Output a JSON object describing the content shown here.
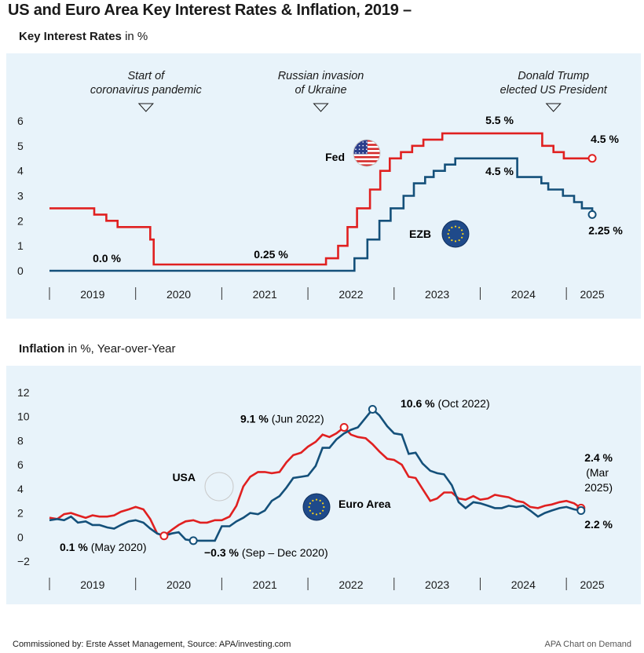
{
  "title": "US and Euro Area Key Interest Rates & Inflation, 2019 –",
  "footer": {
    "left": "Commissioned by: Erste Asset Management, Source: APA/investing.com",
    "right": "APA Chart on Demand"
  },
  "colors": {
    "us": "#e02020",
    "euro": "#14507a",
    "panel": "#e8f3fa"
  },
  "chart_data": [
    {
      "type": "line",
      "subtitle_bold": "Key Interest Rates",
      "subtitle_rest": " in %",
      "ylim": [
        0,
        6
      ],
      "yticks": [
        "0",
        "1",
        "2",
        "3",
        "4",
        "5",
        "6"
      ],
      "xlim": [
        2019,
        2025.5
      ],
      "xticks": [
        {
          "label": "2019",
          "x": 2019.5
        },
        {
          "label": "2020",
          "x": 2020.5
        },
        {
          "label": "2021",
          "x": 2021.5
        },
        {
          "label": "2022",
          "x": 2022.5
        },
        {
          "label": "2023",
          "x": 2023.5
        },
        {
          "label": "2024",
          "x": 2024.5
        },
        {
          "label": "2025",
          "x": 2025.3
        }
      ],
      "grid": false,
      "series": [
        {
          "name": "Fed",
          "key": "us",
          "step": true,
          "points": [
            [
              2019.0,
              2.5
            ],
            [
              2019.52,
              2.25
            ],
            [
              2019.66,
              2.0
            ],
            [
              2019.79,
              1.75
            ],
            [
              2020.17,
              1.25
            ],
            [
              2020.21,
              0.25
            ],
            [
              2022.21,
              0.5
            ],
            [
              2022.35,
              1.0
            ],
            [
              2022.46,
              1.75
            ],
            [
              2022.57,
              2.5
            ],
            [
              2022.72,
              3.25
            ],
            [
              2022.84,
              4.0
            ],
            [
              2022.95,
              4.5
            ],
            [
              2023.08,
              4.75
            ],
            [
              2023.21,
              5.0
            ],
            [
              2023.34,
              5.25
            ],
            [
              2023.56,
              5.5
            ],
            [
              2024.72,
              5.0
            ],
            [
              2024.85,
              4.75
            ],
            [
              2024.97,
              4.5
            ],
            [
              2025.3,
              4.5
            ]
          ],
          "label": "Fed",
          "annotations": [
            {
              "text": "5.5 %",
              "x": 2024.1,
              "y": 5.5,
              "bold": true
            },
            {
              "text": "4.5 %",
              "x": 2025.3,
              "y": 4.5,
              "bold": true
            },
            {
              "text": "0.25 %",
              "x": 2021.5,
              "y": 0.25,
              "bold": true
            }
          ]
        },
        {
          "name": "EZB",
          "key": "euro",
          "step": true,
          "points": [
            [
              2019.0,
              0.0
            ],
            [
              2022.54,
              0.0
            ],
            [
              2022.54,
              0.5
            ],
            [
              2022.69,
              1.25
            ],
            [
              2022.83,
              2.0
            ],
            [
              2022.96,
              2.5
            ],
            [
              2023.11,
              3.0
            ],
            [
              2023.23,
              3.5
            ],
            [
              2023.36,
              3.75
            ],
            [
              2023.46,
              4.0
            ],
            [
              2023.59,
              4.25
            ],
            [
              2023.71,
              4.5
            ],
            [
              2024.43,
              4.5
            ],
            [
              2024.43,
              3.75
            ],
            [
              2024.71,
              3.5
            ],
            [
              2024.79,
              3.25
            ],
            [
              2024.96,
              3.0
            ],
            [
              2025.09,
              2.75
            ],
            [
              2025.18,
              2.5
            ],
            [
              2025.3,
              2.25
            ]
          ],
          "label": "EZB",
          "annotations": [
            {
              "text": "4.5 %",
              "x": 2024.05,
              "y": 4.5,
              "bold": true
            },
            {
              "text": "2.25 %",
              "x": 2025.3,
              "y": 2.25,
              "bold": true
            },
            {
              "text": "0.0 %",
              "x": 2019.7,
              "y": 0.0,
              "bold": true
            }
          ]
        }
      ],
      "events": [
        {
          "line1": "Start of",
          "line2": "coronavirus pandemic",
          "x": 2020.12
        },
        {
          "line1": "Russian invasion",
          "line2": "of Ukraine",
          "x": 2022.15
        },
        {
          "line1": "Donald Trump",
          "line2": "elected US President",
          "x": 2024.85
        }
      ]
    },
    {
      "type": "line",
      "subtitle_bold": "Inflation",
      "subtitle_rest": " in %, Year-over-Year",
      "ylim": [
        -2,
        12
      ],
      "yticks": [
        "−2",
        "0",
        "2",
        "4",
        "6",
        "8",
        "10",
        "12"
      ],
      "xlim": [
        2019,
        2025.5
      ],
      "xticks": [
        {
          "label": "2019",
          "x": 2019.5
        },
        {
          "label": "2020",
          "x": 2020.5
        },
        {
          "label": "2021",
          "x": 2021.5
        },
        {
          "label": "2022",
          "x": 2022.5
        },
        {
          "label": "2023",
          "x": 2023.5
        },
        {
          "label": "2024",
          "x": 2024.5
        },
        {
          "label": "2025",
          "x": 2025.3
        }
      ],
      "grid": false,
      "series": [
        {
          "name": "USA",
          "key": "us",
          "points": [
            [
              2019.0,
              1.6
            ],
            [
              2019.09,
              1.5
            ],
            [
              2019.17,
              1.9
            ],
            [
              2019.25,
              2.0
            ],
            [
              2019.33,
              1.8
            ],
            [
              2019.42,
              1.6
            ],
            [
              2019.5,
              1.8
            ],
            [
              2019.58,
              1.7
            ],
            [
              2019.67,
              1.7
            ],
            [
              2019.75,
              1.8
            ],
            [
              2019.83,
              2.1
            ],
            [
              2019.92,
              2.3
            ],
            [
              2020.0,
              2.5
            ],
            [
              2020.09,
              2.3
            ],
            [
              2020.17,
              1.5
            ],
            [
              2020.25,
              0.3
            ],
            [
              2020.33,
              0.1
            ],
            [
              2020.42,
              0.6
            ],
            [
              2020.5,
              1.0
            ],
            [
              2020.58,
              1.3
            ],
            [
              2020.67,
              1.4
            ],
            [
              2020.75,
              1.2
            ],
            [
              2020.83,
              1.2
            ],
            [
              2020.92,
              1.4
            ],
            [
              2021.0,
              1.4
            ],
            [
              2021.09,
              1.7
            ],
            [
              2021.17,
              2.6
            ],
            [
              2021.25,
              4.2
            ],
            [
              2021.33,
              5.0
            ],
            [
              2021.42,
              5.4
            ],
            [
              2021.5,
              5.4
            ],
            [
              2021.58,
              5.3
            ],
            [
              2021.67,
              5.4
            ],
            [
              2021.75,
              6.2
            ],
            [
              2021.83,
              6.8
            ],
            [
              2021.92,
              7.0
            ],
            [
              2022.0,
              7.5
            ],
            [
              2022.09,
              7.9
            ],
            [
              2022.17,
              8.5
            ],
            [
              2022.25,
              8.3
            ],
            [
              2022.33,
              8.6
            ],
            [
              2022.42,
              9.1
            ],
            [
              2022.5,
              8.5
            ],
            [
              2022.58,
              8.3
            ],
            [
              2022.67,
              8.2
            ],
            [
              2022.75,
              7.7
            ],
            [
              2022.83,
              7.1
            ],
            [
              2022.92,
              6.5
            ],
            [
              2023.0,
              6.4
            ],
            [
              2023.09,
              6.0
            ],
            [
              2023.17,
              5.0
            ],
            [
              2023.25,
              4.9
            ],
            [
              2023.33,
              4.0
            ],
            [
              2023.42,
              3.0
            ],
            [
              2023.5,
              3.2
            ],
            [
              2023.58,
              3.7
            ],
            [
              2023.67,
              3.7
            ],
            [
              2023.75,
              3.2
            ],
            [
              2023.83,
              3.1
            ],
            [
              2023.92,
              3.4
            ],
            [
              2024.0,
              3.1
            ],
            [
              2024.09,
              3.2
            ],
            [
              2024.17,
              3.5
            ],
            [
              2024.25,
              3.4
            ],
            [
              2024.33,
              3.3
            ],
            [
              2024.42,
              3.0
            ],
            [
              2024.5,
              2.9
            ],
            [
              2024.58,
              2.5
            ],
            [
              2024.67,
              2.4
            ],
            [
              2024.75,
              2.6
            ],
            [
              2024.83,
              2.7
            ],
            [
              2024.92,
              2.9
            ],
            [
              2025.0,
              3.0
            ],
            [
              2025.09,
              2.8
            ],
            [
              2025.17,
              2.4
            ]
          ],
          "label": "USA",
          "annotations": [
            {
              "bold": "9.1 %",
              "rest": " (Jun 2022)",
              "x": 2022.42,
              "y": 9.1
            },
            {
              "bold": "2.4 %",
              "rest": "(Mar",
              "rest2": "2025)",
              "x": 2025.17,
              "y": 2.4
            },
            {
              "bold": "0.1 %",
              "rest": " (May 2020)",
              "x": 2020.33,
              "y": 0.1
            }
          ]
        },
        {
          "name": "Euro Area",
          "key": "euro",
          "points": [
            [
              2019.0,
              1.4
            ],
            [
              2019.09,
              1.5
            ],
            [
              2019.17,
              1.4
            ],
            [
              2019.25,
              1.7
            ],
            [
              2019.33,
              1.2
            ],
            [
              2019.42,
              1.3
            ],
            [
              2019.5,
              1.0
            ],
            [
              2019.58,
              1.0
            ],
            [
              2019.67,
              0.8
            ],
            [
              2019.75,
              0.7
            ],
            [
              2019.83,
              1.0
            ],
            [
              2019.92,
              1.3
            ],
            [
              2020.0,
              1.4
            ],
            [
              2020.09,
              1.2
            ],
            [
              2020.17,
              0.7
            ],
            [
              2020.25,
              0.3
            ],
            [
              2020.33,
              0.1
            ],
            [
              2020.42,
              0.3
            ],
            [
              2020.5,
              0.4
            ],
            [
              2020.58,
              -0.2
            ],
            [
              2020.67,
              -0.3
            ],
            [
              2020.75,
              -0.3
            ],
            [
              2020.83,
              -0.3
            ],
            [
              2020.92,
              -0.3
            ],
            [
              2021.0,
              0.9
            ],
            [
              2021.09,
              0.9
            ],
            [
              2021.17,
              1.3
            ],
            [
              2021.25,
              1.6
            ],
            [
              2021.33,
              2.0
            ],
            [
              2021.42,
              1.9
            ],
            [
              2021.5,
              2.2
            ],
            [
              2021.58,
              3.0
            ],
            [
              2021.67,
              3.4
            ],
            [
              2021.75,
              4.1
            ],
            [
              2021.83,
              4.9
            ],
            [
              2021.92,
              5.0
            ],
            [
              2022.0,
              5.1
            ],
            [
              2022.09,
              5.9
            ],
            [
              2022.17,
              7.4
            ],
            [
              2022.25,
              7.4
            ],
            [
              2022.33,
              8.1
            ],
            [
              2022.42,
              8.6
            ],
            [
              2022.5,
              8.9
            ],
            [
              2022.58,
              9.1
            ],
            [
              2022.67,
              9.9
            ],
            [
              2022.75,
              10.6
            ],
            [
              2022.83,
              10.1
            ],
            [
              2022.92,
              9.2
            ],
            [
              2023.0,
              8.6
            ],
            [
              2023.09,
              8.5
            ],
            [
              2023.17,
              6.9
            ],
            [
              2023.25,
              7.0
            ],
            [
              2023.33,
              6.1
            ],
            [
              2023.42,
              5.5
            ],
            [
              2023.5,
              5.3
            ],
            [
              2023.58,
              5.2
            ],
            [
              2023.67,
              4.3
            ],
            [
              2023.75,
              2.9
            ],
            [
              2023.83,
              2.4
            ],
            [
              2023.92,
              2.9
            ],
            [
              2024.0,
              2.8
            ],
            [
              2024.09,
              2.6
            ],
            [
              2024.17,
              2.4
            ],
            [
              2024.25,
              2.4
            ],
            [
              2024.33,
              2.6
            ],
            [
              2024.42,
              2.5
            ],
            [
              2024.5,
              2.6
            ],
            [
              2024.58,
              2.2
            ],
            [
              2024.67,
              1.7
            ],
            [
              2024.75,
              2.0
            ],
            [
              2024.83,
              2.2
            ],
            [
              2024.92,
              2.4
            ],
            [
              2025.0,
              2.5
            ],
            [
              2025.09,
              2.3
            ],
            [
              2025.17,
              2.2
            ]
          ],
          "label": "Euro Area",
          "annotations": [
            {
              "bold": "10.6 %",
              "rest": " (Oct 2022)",
              "x": 2022.75,
              "y": 10.6
            },
            {
              "bold": "2.2 %",
              "rest": "",
              "x": 2025.17,
              "y": 2.2
            },
            {
              "bold": "−0.3 %",
              "rest": " (Sep – Dec 2020)",
              "x": 2020.67,
              "y": -0.3
            }
          ]
        }
      ]
    }
  ]
}
